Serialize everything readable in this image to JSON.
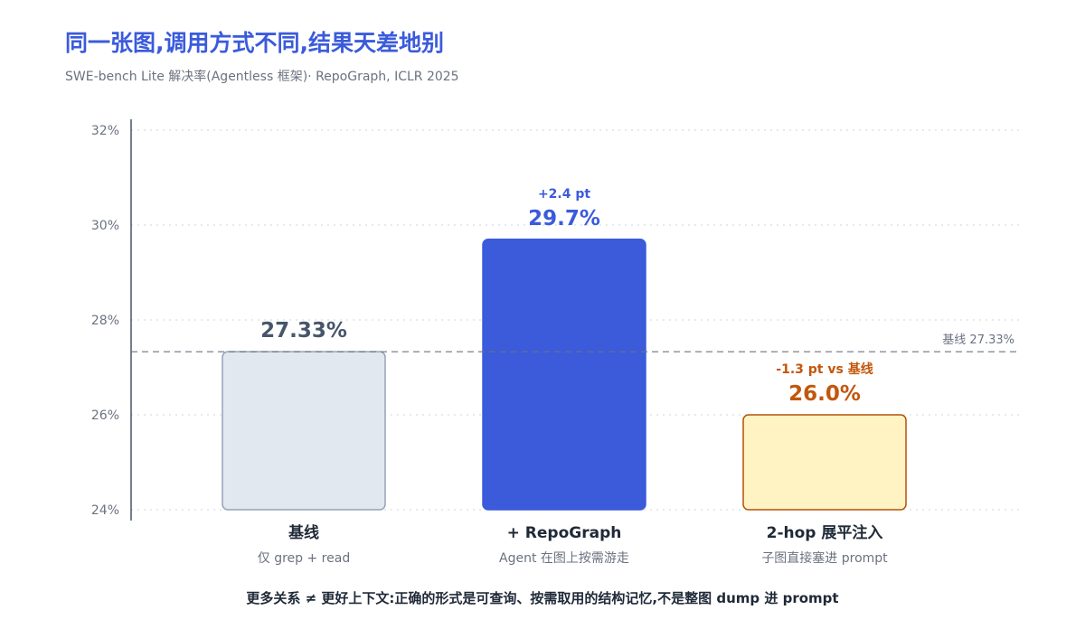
{
  "header": {
    "title": "同一张图,调用方式不同,结果天差地别",
    "subtitle": "SWE-bench Lite 解决率(Agentless 框架)· RepoGraph, ICLR 2025"
  },
  "footnote": "更多关系 ≠ 更好上下文:正确的形式是可查询、按需取用的结构记忆,不是整图 dump 进 prompt",
  "chart_data": {
    "type": "bar",
    "ylim": [
      24,
      32
    ],
    "yticks": [
      24,
      26,
      28,
      30,
      32
    ],
    "ytick_labels": [
      "24%",
      "26%",
      "28%",
      "30%",
      "32%"
    ],
    "grid": true,
    "categories": [
      "基线",
      "+ RepoGraph",
      "2-hop 展平注入"
    ],
    "category_sublabels": [
      "仅 grep + read",
      "Agent 在图上按需游走",
      "子图直接塞进 prompt"
    ],
    "values": [
      27.33,
      29.7,
      26.0
    ],
    "value_labels": [
      "27.33%",
      "29.7%",
      "26.0%"
    ],
    "delta_labels": [
      "",
      "+2.4 pt",
      "-1.3 pt vs 基线"
    ],
    "bar_fills": [
      "#e2e8f0",
      "#3b5bdb",
      "#fff3c4"
    ],
    "bar_strokes": [
      "#94a3b8",
      "#3b5bdb",
      "#b45309"
    ],
    "value_label_colors": [
      "#475569",
      "#3b5bdb",
      "#c2570c"
    ],
    "reference_line": {
      "value": 27.33,
      "label": "基线 27.33%"
    }
  }
}
